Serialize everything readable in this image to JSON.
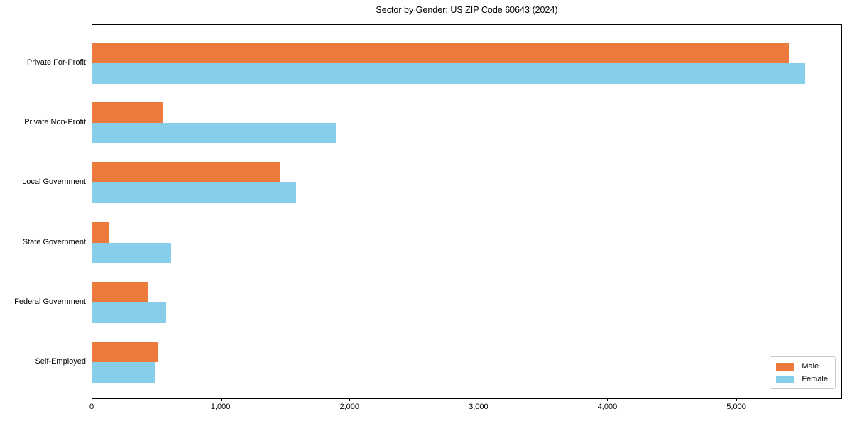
{
  "chart_data": {
    "type": "bar",
    "orientation": "horizontal",
    "title": "Sector by Gender: US ZIP Code 60643 (2024)",
    "categories": [
      "Private For-Profit",
      "Private Non-Profit",
      "Local Government",
      "State Government",
      "Federal Government",
      "Self-Employed"
    ],
    "series": [
      {
        "name": "Male",
        "color": "#eb7a3c",
        "values": [
          5400,
          550,
          1460,
          130,
          435,
          510
        ]
      },
      {
        "name": "Female",
        "color": "#87ceeb",
        "values": [
          5530,
          1890,
          1580,
          610,
          570,
          490
        ]
      }
    ],
    "xlabel": "",
    "ylabel": "",
    "xlim": [
      0,
      5820
    ],
    "xticks": [
      {
        "value": 0,
        "label": "0"
      },
      {
        "value": 1000,
        "label": "1,000"
      },
      {
        "value": 2000,
        "label": "2,000"
      },
      {
        "value": 3000,
        "label": "3,000"
      },
      {
        "value": 4000,
        "label": "4,000"
      },
      {
        "value": 5000,
        "label": "5,000"
      }
    ],
    "grid": false,
    "legend": {
      "position": "lower right"
    }
  }
}
